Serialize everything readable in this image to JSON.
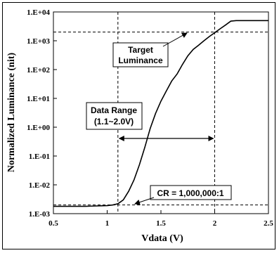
{
  "chart_data": {
    "type": "line",
    "xlabel": "Vdata (V)",
    "ylabel": "Normalized Luminance (nit)",
    "xlim": [
      0.5,
      2.5
    ],
    "ylim_log10": [
      -3,
      4
    ],
    "y_scale": "log",
    "x_ticks": [
      "0.5",
      "1",
      "1.5",
      "2",
      "2.5"
    ],
    "y_ticks": [
      "1.E-03",
      "1.E-02",
      "1.E-01",
      "1.E+00",
      "1.E+01",
      "1.E+02",
      "1.E+03",
      "1.E+04"
    ],
    "grid": false,
    "series": [
      {
        "x": [
          0.5,
          0.8,
          1.0,
          1.05,
          1.1,
          1.15,
          1.2,
          1.25,
          1.3,
          1.35,
          1.4,
          1.45,
          1.5,
          1.55,
          1.6,
          1.65,
          1.7,
          1.75,
          1.8,
          1.85,
          1.9,
          1.95,
          2.0,
          2.05,
          2.1,
          2.15,
          2.2,
          2.3,
          2.5
        ],
        "y": [
          0.0018,
          0.0018,
          0.0019,
          0.002,
          0.0022,
          0.003,
          0.006,
          0.015,
          0.05,
          0.2,
          0.9,
          3,
          8,
          18,
          40,
          70,
          150,
          300,
          500,
          700,
          1000,
          1400,
          1900,
          2600,
          3500,
          4800,
          5000,
          5000,
          5000
        ]
      }
    ],
    "reference_lines": {
      "target_luminance_y": 2000,
      "black_level_y": 0.002,
      "data_range_x": [
        1.1,
        2.0
      ]
    },
    "annotations": {
      "target": [
        "Target",
        "Luminance"
      ],
      "range": [
        "Data Range",
        "(1.1~2.0V)"
      ],
      "cr": "CR = 1,000,000:1"
    }
  }
}
